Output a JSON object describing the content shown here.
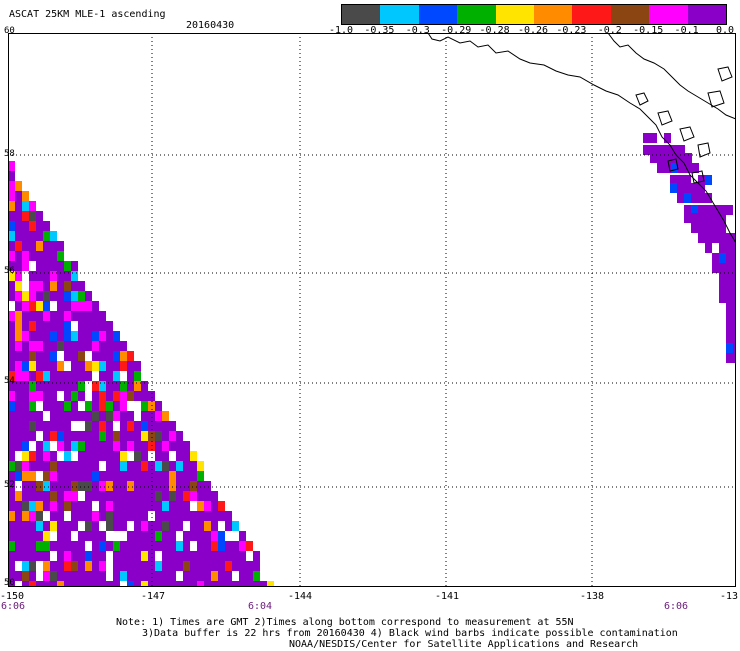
{
  "header": {
    "title": "ASCAT 25KM MLE-1 ascending",
    "date": "20160430"
  },
  "colorbar": {
    "colors": [
      "#4a4a4a",
      "#00c8ff",
      "#0048ff",
      "#00b000",
      "#ffe400",
      "#ff8c00",
      "#ff1818",
      "#8b4513",
      "#ff00ff",
      "#8a00c8"
    ],
    "labels": [
      "-1.0",
      "-0.35",
      "-0.3",
      "-0.29",
      "-0.28",
      "-0.26",
      "-0.23",
      "-0.2",
      "-0.15",
      "-0.1",
      "0.0"
    ]
  },
  "axes": {
    "lon_ticks": [
      "-150",
      "-147",
      "-144",
      "-141",
      "-138",
      "-13"
    ],
    "lat_ticks": [
      "60",
      "58",
      "56",
      "54",
      "52",
      "50"
    ]
  },
  "times": {
    "left": "6:06",
    "middle": "6:04",
    "right": "6:06"
  },
  "notes": {
    "line1": "Note: 1) Times are GMT 2)Times along bottom correspond to measurement at 55N",
    "line2": "3)Data buffer is 22 hrs from 20160430 4) Black wind barbs indicate possible contamination",
    "line3": "NOAA/NESDIS/Center for Satellite Applications and Research"
  }
}
